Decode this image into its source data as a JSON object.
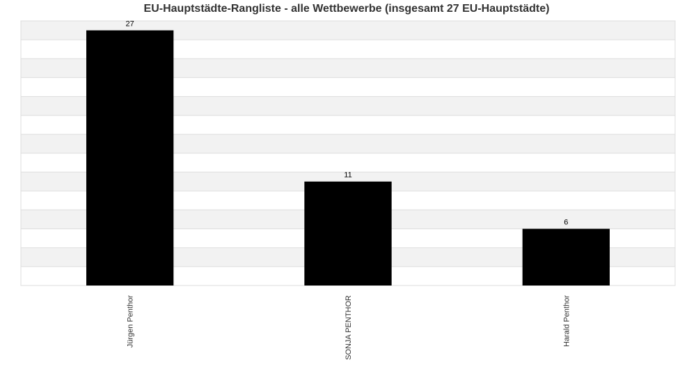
{
  "chart_data": {
    "type": "bar",
    "title": "EU-Hauptstädte-Rangliste - alle Wettbewerbe  (insgesamt 27 EU-Hauptstädte)",
    "categories": [
      "Jürgen Penthor",
      "SONJA PENTHOR",
      "Harald Penthor"
    ],
    "values": [
      27,
      11,
      6
    ],
    "color": "#000000",
    "ylim": [
      0,
      28
    ],
    "yticks": [
      0,
      2,
      4,
      6,
      8,
      10,
      12,
      14,
      16,
      18,
      20,
      22,
      24,
      26,
      28
    ],
    "grid": true
  }
}
